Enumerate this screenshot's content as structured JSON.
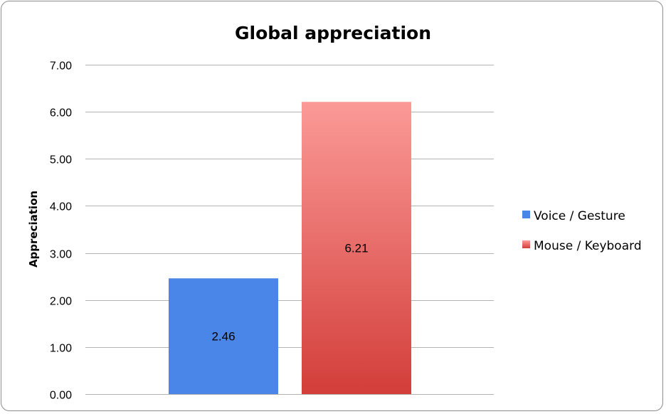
{
  "chart_data": {
    "type": "bar",
    "title": "Global appreciation",
    "xlabel": "",
    "ylabel": "Appreciation",
    "ylim": [
      0,
      7
    ],
    "yticks": [
      "0.00",
      "1.00",
      "2.00",
      "3.00",
      "4.00",
      "5.00",
      "6.00",
      "7.00"
    ],
    "grid": true,
    "legend_position": "right",
    "series": [
      {
        "name": "Voice / Gesture",
        "values": [
          2.46
        ],
        "color": "#4a86e8",
        "label": "2.46"
      },
      {
        "name": "Mouse / Keyboard",
        "values": [
          6.21
        ],
        "color": "#d9423e",
        "label": "6.21"
      }
    ]
  }
}
